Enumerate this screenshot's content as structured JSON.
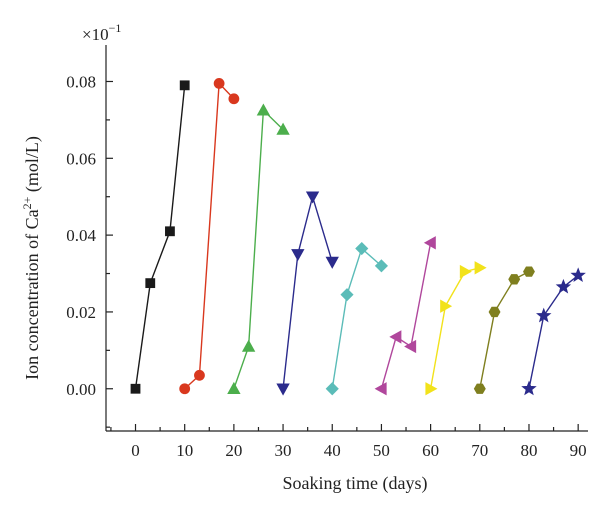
{
  "chart_data": {
    "type": "line",
    "xlabel": "Soaking time (days)",
    "ylabel_prefix": "Ion concentration of Ca",
    "ylabel_superscript": "2+",
    "ylabel_suffix": " (mol/L)",
    "y_multiplier_base": "×10",
    "y_multiplier_exponent": "−1",
    "xlim": [
      -6,
      92
    ],
    "ylim": [
      -0.011,
      0.0895
    ],
    "x_ticks": [
      0,
      10,
      20,
      30,
      40,
      50,
      60,
      70,
      80,
      90
    ],
    "x_tick_labels": [
      "0",
      "10",
      "20",
      "30",
      "40",
      "50",
      "60",
      "70",
      "80",
      "90"
    ],
    "y_ticks": [
      0,
      0.02,
      0.04,
      0.06,
      0.08
    ],
    "y_tick_labels": [
      "0.00",
      "0.02",
      "0.04",
      "0.06",
      "0.08"
    ],
    "grid": false,
    "legend": "none",
    "series": [
      {
        "marker": "square",
        "color": "#1a1a1a",
        "x": [
          0,
          3,
          7,
          10
        ],
        "y": [
          0.0,
          0.0275,
          0.041,
          0.079
        ]
      },
      {
        "marker": "circle",
        "color": "#d9381e",
        "x": [
          10,
          13,
          17,
          20
        ],
        "y": [
          0.0,
          0.0035,
          0.0795,
          0.0755
        ]
      },
      {
        "marker": "triangle-up",
        "color": "#4cae4c",
        "x": [
          20,
          23,
          26,
          30
        ],
        "y": [
          0.0,
          0.011,
          0.0725,
          0.0675
        ]
      },
      {
        "marker": "triangle-down",
        "color": "#2b2b8c",
        "x": [
          30,
          33,
          36,
          40
        ],
        "y": [
          0.0,
          0.035,
          0.05,
          0.033
        ]
      },
      {
        "marker": "diamond",
        "color": "#5bbcb8",
        "x": [
          40,
          43,
          46,
          50
        ],
        "y": [
          0.0,
          0.0245,
          0.0365,
          0.032
        ]
      },
      {
        "marker": "triangle-left",
        "color": "#b0479c",
        "x": [
          50,
          53,
          56,
          60
        ],
        "y": [
          0.0,
          0.0135,
          0.011,
          0.038
        ]
      },
      {
        "marker": "triangle-right",
        "color": "#f2e21b",
        "x": [
          60,
          63,
          67,
          70
        ],
        "y": [
          0.0,
          0.0215,
          0.0305,
          0.0315
        ]
      },
      {
        "marker": "hexagon",
        "color": "#7f7f1f",
        "x": [
          70,
          73,
          77,
          80
        ],
        "y": [
          0.0,
          0.02,
          0.0285,
          0.0305
        ]
      },
      {
        "marker": "star",
        "color": "#2b2b8c",
        "x": [
          80,
          83,
          87,
          90
        ],
        "y": [
          0.0,
          0.019,
          0.0265,
          0.0295
        ]
      }
    ]
  }
}
